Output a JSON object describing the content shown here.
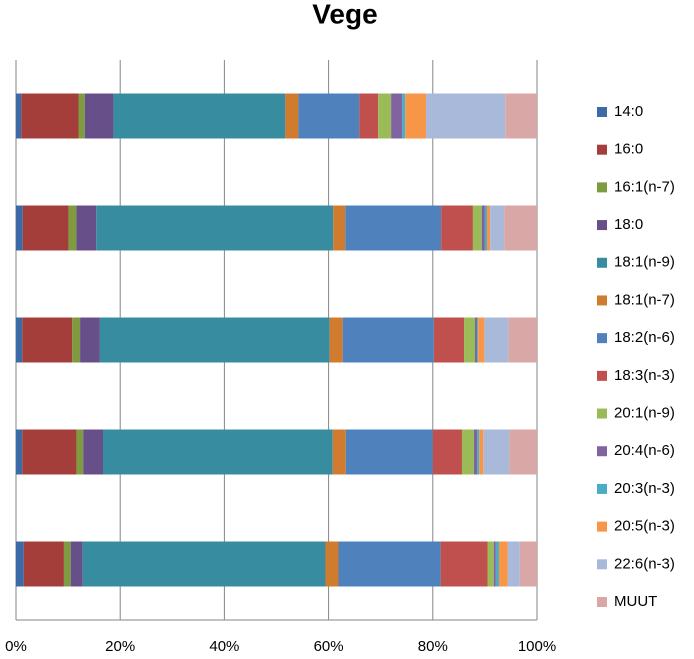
{
  "chart_data": {
    "type": "bar",
    "orientation": "horizontal",
    "stacked": true,
    "title": "Vege",
    "categories": [
      null,
      null,
      null,
      null,
      null
    ],
    "series": [
      {
        "name": "14:0",
        "color": "#3C6AA6",
        "values": [
          1,
          1.3,
          1.2,
          1.2,
          1.5
        ]
      },
      {
        "name": "16:0",
        "color": "#A33E3B",
        "values": [
          11,
          8.8,
          9.6,
          10.4,
          7.7
        ]
      },
      {
        "name": "16:1(n-7)",
        "color": "#7E9B3F",
        "values": [
          1.2,
          1.5,
          1.5,
          1.3,
          1.3
        ]
      },
      {
        "name": "18:0",
        "color": "#67508A",
        "values": [
          5.5,
          3.8,
          3.8,
          3.8,
          2.3
        ]
      },
      {
        "name": "18:1(n-9)",
        "color": "#388C9F",
        "values": [
          33,
          45.5,
          44.1,
          44.1,
          46.6
        ]
      },
      {
        "name": "18:1(n-7)",
        "color": "#D17B2F",
        "values": [
          2.5,
          2.3,
          2.5,
          2.5,
          2.5
        ]
      },
      {
        "name": "18:2(n-6)",
        "color": "#4F81BD",
        "values": [
          11.7,
          18.4,
          17.5,
          16.7,
          19.6
        ]
      },
      {
        "name": "18:3(n-3)",
        "color": "#C0504D",
        "values": [
          3.6,
          6.1,
          5.8,
          5.6,
          9
        ]
      },
      {
        "name": "20:1(n-9)",
        "color": "#9BBB59",
        "values": [
          2.5,
          1.7,
          2.1,
          2.3,
          1.2
        ]
      },
      {
        "name": "20:4(n-6)",
        "color": "#8064A2",
        "values": [
          2.1,
          0.6,
          0.4,
          0.6,
          0.4
        ]
      },
      {
        "name": "20:3(n-3)",
        "color": "#4BACC6",
        "values": [
          0.6,
          0.4,
          0.2,
          0.4,
          0.6
        ]
      },
      {
        "name": "20:5(n-3)",
        "color": "#F79646",
        "values": [
          4,
          0.6,
          1.2,
          0.8,
          1.7
        ]
      },
      {
        "name": "22:6(n-3)",
        "color": "#A9B9DA",
        "values": [
          15.2,
          2.7,
          4.6,
          5,
          2.3
        ]
      },
      {
        "name": "MUUT",
        "color": "#D8A7A6",
        "values": [
          6.1,
          6.3,
          5.5,
          5.3,
          3.3
        ]
      }
    ],
    "xlim": [
      0,
      100
    ],
    "xticks": [
      {
        "value": 0,
        "label": "0%"
      },
      {
        "value": 20,
        "label": "20%"
      },
      {
        "value": 40,
        "label": "40%"
      },
      {
        "value": 60,
        "label": "60%"
      },
      {
        "value": 80,
        "label": "80%"
      },
      {
        "value": 100,
        "label": "100%"
      }
    ],
    "grid": true,
    "legend": "right"
  }
}
